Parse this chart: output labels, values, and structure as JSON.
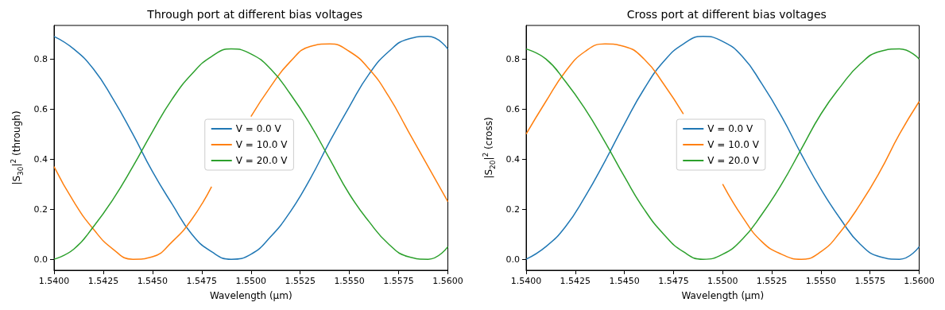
{
  "chart_data": [
    {
      "type": "line",
      "title": "Through port at different bias voltages",
      "xlabel": "Wavelength (µm)",
      "ylabel": "|S$_{30}$|$^{2}$ (through)",
      "x": [
        1.54,
        1.541,
        1.542,
        1.543,
        1.544,
        1.545,
        1.546,
        1.547,
        1.548,
        1.549,
        1.55,
        1.551,
        1.552,
        1.553,
        1.554,
        1.555,
        1.556,
        1.557,
        1.558,
        1.559,
        1.56
      ],
      "series": [
        {
          "name": "V = 0.0 V",
          "color": "#1f77b4",
          "values": [
            0.89,
            0.84,
            0.76,
            0.64,
            0.5,
            0.35,
            0.22,
            0.1,
            0.03,
            0.0,
            0.02,
            0.09,
            0.19,
            0.32,
            0.47,
            0.61,
            0.74,
            0.83,
            0.88,
            0.89,
            0.84
          ]
        },
        {
          "name": "V = 10.0 V",
          "color": "#ff7f0e",
          "values": [
            0.37,
            0.23,
            0.12,
            0.04,
            0.0,
            0.01,
            0.07,
            0.16,
            0.29,
            null,
            0.57,
            0.69,
            0.79,
            0.85,
            0.86,
            0.83,
            0.76,
            0.65,
            0.51,
            0.37,
            0.23
          ]
        },
        {
          "name": "V = 20.0 V",
          "color": "#2ca02c",
          "values": [
            0.0,
            0.04,
            0.13,
            0.24,
            0.37,
            0.51,
            0.64,
            0.74,
            0.81,
            0.84,
            0.82,
            0.76,
            0.66,
            0.54,
            0.4,
            0.26,
            0.15,
            0.06,
            0.01,
            0.0,
            0.05
          ]
        }
      ],
      "xlim": [
        1.54,
        1.56
      ],
      "xticks": [
        {
          "value": 1.54,
          "label": "1.5400"
        },
        {
          "value": 1.5425,
          "label": "1.5425"
        },
        {
          "value": 1.545,
          "label": "1.5450"
        },
        {
          "value": 1.5475,
          "label": "1.5475"
        },
        {
          "value": 1.55,
          "label": "1.5500"
        },
        {
          "value": 1.5525,
          "label": "1.5525"
        },
        {
          "value": 1.555,
          "label": "1.5550"
        },
        {
          "value": 1.5575,
          "label": "1.5575"
        },
        {
          "value": 1.56,
          "label": "1.5600"
        }
      ],
      "ylim": [
        -0.044,
        0.934
      ],
      "yticks": [
        {
          "value": 0,
          "label": "0.0"
        },
        {
          "value": 0.2,
          "label": "0.2"
        },
        {
          "value": 0.4,
          "label": "0.4"
        },
        {
          "value": 0.6,
          "label": "0.6"
        },
        {
          "value": 0.8,
          "label": "0.8"
        }
      ],
      "grid": false,
      "legend": "center"
    },
    {
      "type": "line",
      "title": "Cross port at different bias voltages",
      "xlabel": "Wavelength (µm)",
      "ylabel": "|S$_{20}$|$^{2}$ (cross)",
      "x": [
        1.54,
        1.541,
        1.542,
        1.543,
        1.544,
        1.545,
        1.546,
        1.547,
        1.548,
        1.549,
        1.55,
        1.551,
        1.552,
        1.553,
        1.554,
        1.555,
        1.556,
        1.557,
        1.558,
        1.559,
        1.56
      ],
      "series": [
        {
          "name": "V = 0.0 V",
          "color": "#1f77b4",
          "values": [
            0.0,
            0.05,
            0.13,
            0.25,
            0.39,
            0.54,
            0.68,
            0.79,
            0.86,
            0.89,
            0.87,
            0.81,
            0.7,
            0.57,
            0.42,
            0.28,
            0.16,
            0.06,
            0.01,
            0.0,
            0.05
          ]
        },
        {
          "name": "V = 10.0 V",
          "color": "#ff7f0e",
          "values": [
            0.5,
            0.63,
            0.75,
            0.83,
            0.86,
            0.85,
            0.8,
            0.7,
            0.58,
            null,
            0.3,
            0.17,
            0.07,
            0.02,
            0.0,
            0.03,
            0.11,
            0.22,
            0.35,
            0.5,
            0.63
          ]
        },
        {
          "name": "V = 20.0 V",
          "color": "#2ca02c",
          "values": [
            0.84,
            0.8,
            0.71,
            0.6,
            0.47,
            0.33,
            0.2,
            0.1,
            0.03,
            0.0,
            0.02,
            0.08,
            0.18,
            0.3,
            0.44,
            0.58,
            0.69,
            0.78,
            0.83,
            0.84,
            0.8
          ]
        }
      ],
      "xlim": [
        1.54,
        1.56
      ],
      "xticks": [
        {
          "value": 1.54,
          "label": "1.5400"
        },
        {
          "value": 1.5425,
          "label": "1.5425"
        },
        {
          "value": 1.545,
          "label": "1.5450"
        },
        {
          "value": 1.5475,
          "label": "1.5475"
        },
        {
          "value": 1.55,
          "label": "1.5500"
        },
        {
          "value": 1.5525,
          "label": "1.5525"
        },
        {
          "value": 1.555,
          "label": "1.5550"
        },
        {
          "value": 1.5575,
          "label": "1.5575"
        },
        {
          "value": 1.56,
          "label": "1.5600"
        }
      ],
      "ylim": [
        -0.044,
        0.934
      ],
      "yticks": [
        {
          "value": 0,
          "label": "0.0"
        },
        {
          "value": 0.2,
          "label": "0.2"
        },
        {
          "value": 0.4,
          "label": "0.4"
        },
        {
          "value": 0.6,
          "label": "0.6"
        },
        {
          "value": 0.8,
          "label": "0.8"
        }
      ],
      "grid": false,
      "legend": "center"
    }
  ]
}
